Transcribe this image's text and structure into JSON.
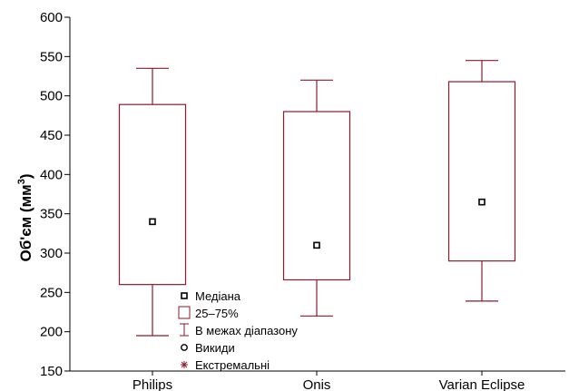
{
  "chart_data": {
    "type": "boxplot",
    "title": "",
    "xlabel": "",
    "ylabel": {
      "main": "Об'єм (мм",
      "superscript": "3",
      "close": ")"
    },
    "ylim": [
      150,
      600
    ],
    "yticks": [
      "150",
      "200",
      "250",
      "300",
      "350",
      "400",
      "450",
      "500",
      "550",
      "600"
    ],
    "grid": false,
    "legend_position": "bottom-center",
    "colors": {
      "box": "#8b1a2e",
      "axis": "#000000",
      "marker": "#000000"
    },
    "categories": [
      "Philips",
      "Onis",
      "Varian Eclipse"
    ],
    "series": [
      {
        "median": 340,
        "q1": 260,
        "q3": 489,
        "whisker_low": 195,
        "whisker_high": 535
      },
      {
        "median": 310,
        "q1": 266,
        "q3": 480,
        "whisker_low": 220,
        "whisker_high": 520
      },
      {
        "median": 365,
        "q1": 290,
        "q3": 518,
        "whisker_low": 239,
        "whisker_high": 545
      }
    ],
    "legend": [
      {
        "icon": "median-square-icon",
        "label": "Медіана"
      },
      {
        "icon": "box-rect-icon",
        "label": "25–75%"
      },
      {
        "icon": "whisker-range-icon",
        "label": "В межах діапазону"
      },
      {
        "icon": "outlier-circle-icon",
        "label": "Викиди"
      },
      {
        "icon": "extreme-asterisk-icon",
        "label": "Екстремальні"
      }
    ]
  }
}
